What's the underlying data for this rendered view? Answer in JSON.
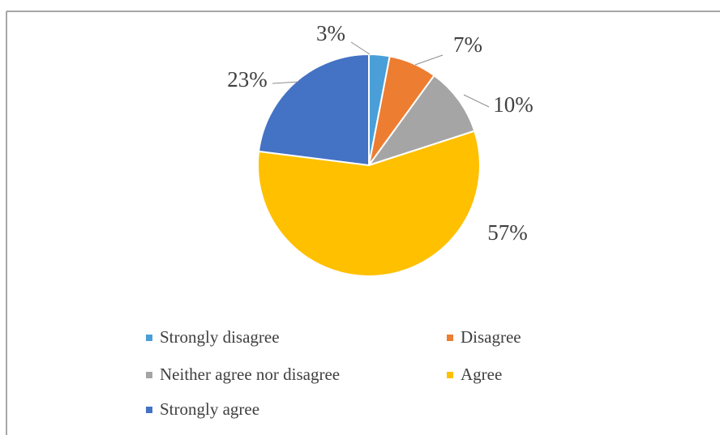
{
  "chart_data": {
    "type": "pie",
    "categories": [
      "Strongly disagree",
      "Disagree",
      "Neither agree nor disagree",
      "Agree",
      "Strongly agree"
    ],
    "values": [
      3,
      7,
      10,
      57,
      23
    ],
    "labels": [
      "3%",
      "7%",
      "10%",
      "57%",
      "23%"
    ],
    "colors": [
      "#4a9fd8",
      "#ed7d31",
      "#a5a5a5",
      "#ffc000",
      "#4472c4"
    ],
    "legend_position": "bottom"
  }
}
